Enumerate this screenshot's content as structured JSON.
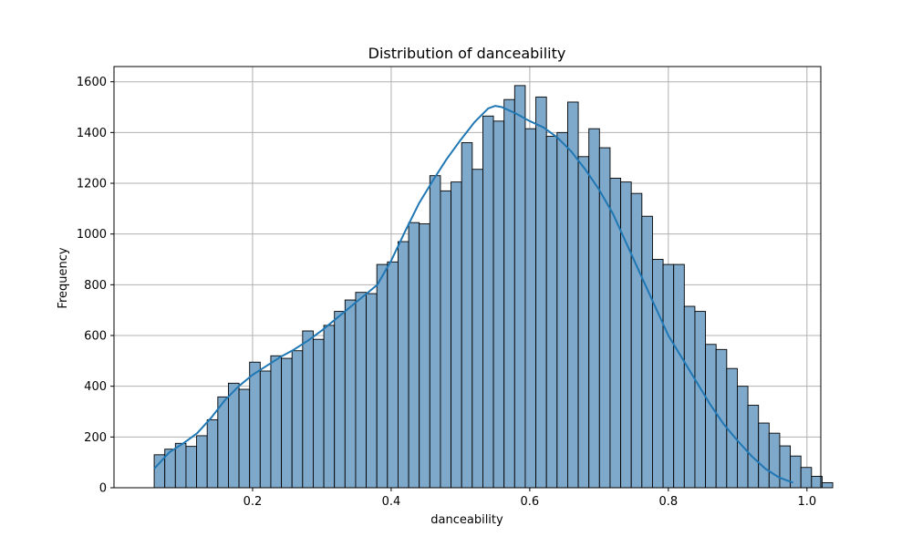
{
  "chart_data": {
    "type": "bar",
    "title": "Distribution of danceability",
    "xlabel": "danceability",
    "ylabel": "Frequency",
    "xlim": [
      0.0,
      1.02
    ],
    "ylim": [
      0,
      1660
    ],
    "xticks": [
      0.2,
      0.4,
      0.6,
      0.8,
      1.0
    ],
    "xtick_labels": [
      "0.2",
      "0.4",
      "0.6",
      "0.8",
      "1.0"
    ],
    "yticks": [
      0,
      200,
      400,
      600,
      800,
      1000,
      1200,
      1400,
      1600
    ],
    "ytick_labels": [
      "0",
      "200",
      "400",
      "600",
      "800",
      "1000",
      "1200",
      "1400",
      "1600"
    ],
    "grid": true,
    "bar_fill": "#7fa9cb",
    "bar_edge": "#000000",
    "kde_color": "#1f77b4",
    "bin_start": 0.058,
    "bin_width": 0.0153,
    "values": [
      130,
      152,
      175,
      163,
      205,
      268,
      358,
      412,
      388,
      495,
      460,
      520,
      510,
      540,
      618,
      585,
      640,
      695,
      740,
      770,
      765,
      880,
      890,
      970,
      1045,
      1040,
      1230,
      1170,
      1205,
      1360,
      1255,
      1465,
      1445,
      1530,
      1585,
      1415,
      1540,
      1385,
      1400,
      1520,
      1305,
      1415,
      1340,
      1220,
      1205,
      1160,
      1070,
      900,
      880,
      880,
      715,
      695,
      565,
      545,
      470,
      400,
      325,
      255,
      215,
      165,
      125,
      80,
      45,
      20
    ],
    "kde": {
      "x": [
        0.058,
        0.08,
        0.1,
        0.12,
        0.14,
        0.16,
        0.18,
        0.2,
        0.22,
        0.24,
        0.26,
        0.28,
        0.3,
        0.32,
        0.34,
        0.36,
        0.38,
        0.4,
        0.42,
        0.44,
        0.46,
        0.48,
        0.5,
        0.52,
        0.54,
        0.55,
        0.56,
        0.58,
        0.6,
        0.62,
        0.64,
        0.66,
        0.68,
        0.7,
        0.72,
        0.74,
        0.76,
        0.78,
        0.8,
        0.82,
        0.84,
        0.86,
        0.88,
        0.9,
        0.92,
        0.94,
        0.96,
        0.98
      ],
      "y": [
        75,
        140,
        175,
        215,
        275,
        345,
        400,
        445,
        480,
        515,
        545,
        580,
        620,
        665,
        710,
        755,
        800,
        895,
        1010,
        1120,
        1210,
        1295,
        1370,
        1440,
        1495,
        1505,
        1500,
        1475,
        1445,
        1420,
        1380,
        1325,
        1255,
        1175,
        1080,
        960,
        840,
        720,
        600,
        510,
        420,
        330,
        250,
        185,
        125,
        75,
        40,
        20
      ]
    }
  }
}
